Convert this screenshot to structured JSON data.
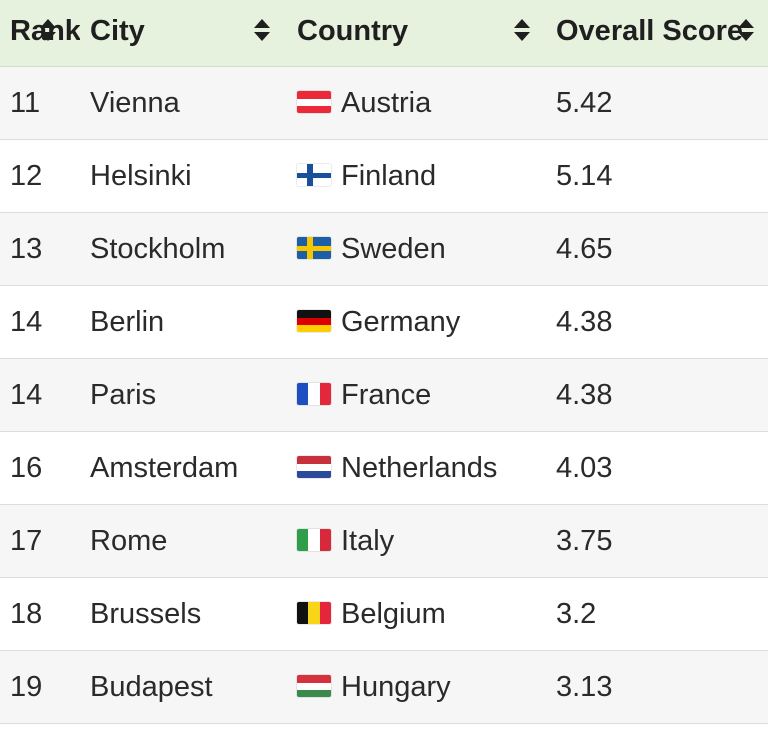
{
  "table": {
    "columns": [
      {
        "label": "Rank"
      },
      {
        "label": "City"
      },
      {
        "label": "Country"
      },
      {
        "label": "Overall Score"
      }
    ],
    "rows": [
      {
        "rank": "11",
        "city": "Vienna",
        "country": "Austria",
        "score": "5.42",
        "flag": {
          "dir": "h",
          "colors": [
            "#ed2939",
            "#ffffff",
            "#ed2939"
          ]
        }
      },
      {
        "rank": "12",
        "city": "Helsinki",
        "country": "Finland",
        "score": "5.14",
        "flag": {
          "dir": "nordic",
          "colors": [
            "#ffffff",
            "#1a4f9c"
          ]
        }
      },
      {
        "rank": "13",
        "city": "Stockholm",
        "country": "Sweden",
        "score": "4.65",
        "flag": {
          "dir": "nordic",
          "colors": [
            "#1d5fa6",
            "#f6c700"
          ]
        }
      },
      {
        "rank": "14",
        "city": "Berlin",
        "country": "Germany",
        "score": "4.38",
        "flag": {
          "dir": "h",
          "colors": [
            "#111111",
            "#dd0000",
            "#ffce00"
          ]
        }
      },
      {
        "rank": "14",
        "city": "Paris",
        "country": "France",
        "score": "4.38",
        "flag": {
          "dir": "v",
          "colors": [
            "#1e4fc2",
            "#ffffff",
            "#e4283c"
          ]
        }
      },
      {
        "rank": "16",
        "city": "Amsterdam",
        "country": "Netherlands",
        "score": "4.03",
        "flag": {
          "dir": "h",
          "colors": [
            "#c8303c",
            "#ffffff",
            "#2a4a9a"
          ]
        }
      },
      {
        "rank": "17",
        "city": "Rome",
        "country": "Italy",
        "score": "3.75",
        "flag": {
          "dir": "v",
          "colors": [
            "#2e9e4a",
            "#ffffff",
            "#d8283c"
          ]
        }
      },
      {
        "rank": "18",
        "city": "Brussels",
        "country": "Belgium",
        "score": "3.2",
        "flag": {
          "dir": "v",
          "colors": [
            "#111111",
            "#f8d518",
            "#e3263a"
          ]
        }
      },
      {
        "rank": "19",
        "city": "Budapest",
        "country": "Hungary",
        "score": "3.13",
        "flag": {
          "dir": "h",
          "colors": [
            "#d6323e",
            "#ffffff",
            "#3a8a4c"
          ]
        }
      }
    ]
  },
  "colors": {
    "header_bg": "#e6f1de",
    "row_alt_bg": "#f6f6f6",
    "divider": "#dcdcdc"
  },
  "icons": {
    "sort": "sort-updown-icon"
  }
}
